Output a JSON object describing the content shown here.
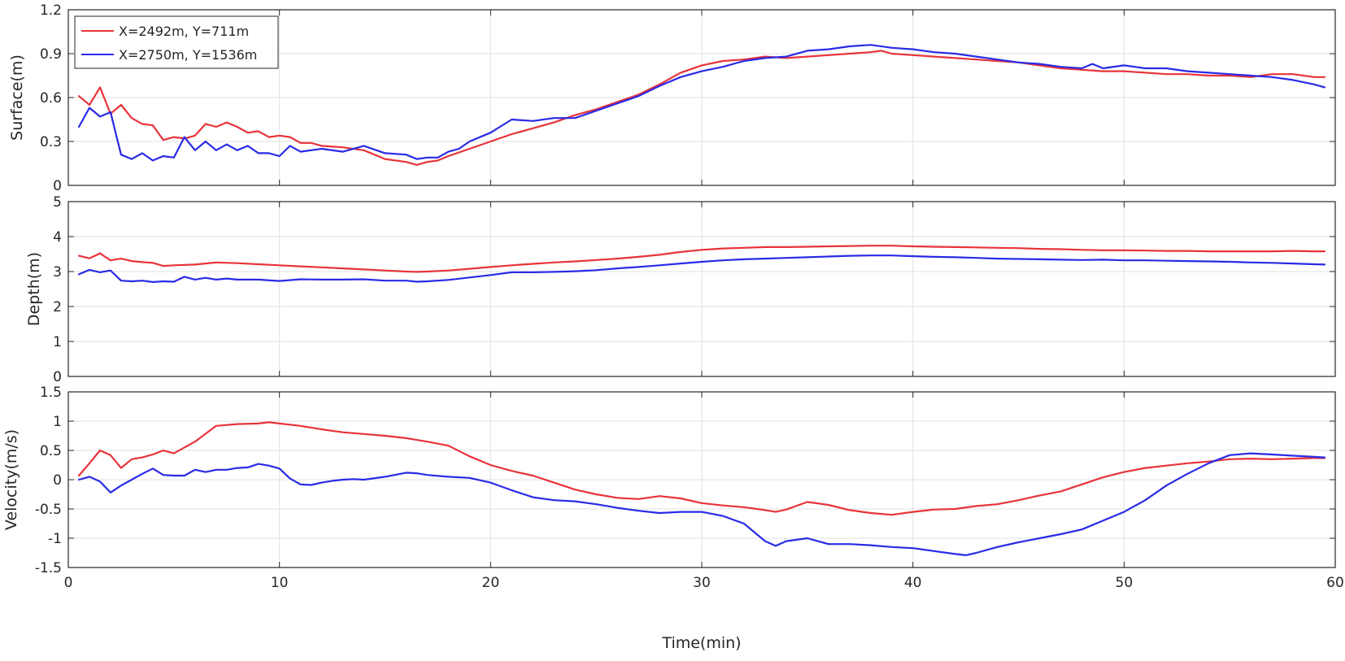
{
  "chart_data": {
    "type": "line",
    "xlabel": "Time(min)",
    "xlim": [
      0,
      60
    ],
    "xticks": [
      0,
      10,
      20,
      30,
      40,
      50,
      60
    ],
    "grid": true,
    "legend": {
      "placement": "top-left",
      "entries": [
        "X=2492m, Y=711m",
        "X=2750m, Y=1536m"
      ]
    },
    "colors": [
      "#e8333a",
      "#2a2ae6"
    ],
    "panels": [
      {
        "ylabel": "Surface(m)",
        "ylim": [
          0,
          1.2
        ],
        "yticks": [
          "0",
          "0.3",
          "0.6",
          "0.9",
          "1.2"
        ],
        "series": [
          {
            "name": "X=2492m, Y=711m",
            "x": [
              0.5,
              1,
              1.5,
              2,
              2.5,
              3,
              3.5,
              4,
              4.5,
              5,
              5.5,
              6,
              6.5,
              7,
              7.5,
              8,
              8.5,
              9,
              9.5,
              10,
              10.5,
              11,
              11.5,
              12,
              13,
              14,
              15,
              16,
              16.5,
              17,
              17.5,
              18,
              19,
              20,
              21,
              22,
              23,
              24,
              25,
              26,
              27,
              28,
              29,
              30,
              31,
              32,
              33,
              34,
              35,
              36,
              37,
              38,
              38.5,
              39,
              40,
              41,
              42,
              43,
              44,
              45,
              46,
              47,
              48,
              49,
              50,
              51,
              52,
              53,
              54,
              55,
              56,
              57,
              58,
              59,
              59.5
            ],
            "y": [
              0.61,
              0.55,
              0.67,
              0.49,
              0.55,
              0.46,
              0.42,
              0.41,
              0.31,
              0.33,
              0.32,
              0.34,
              0.42,
              0.4,
              0.43,
              0.4,
              0.36,
              0.37,
              0.33,
              0.34,
              0.33,
              0.29,
              0.29,
              0.27,
              0.26,
              0.24,
              0.18,
              0.16,
              0.14,
              0.16,
              0.17,
              0.2,
              0.25,
              0.3,
              0.35,
              0.39,
              0.43,
              0.48,
              0.52,
              0.57,
              0.62,
              0.69,
              0.77,
              0.82,
              0.85,
              0.86,
              0.88,
              0.87,
              0.88,
              0.89,
              0.9,
              0.91,
              0.92,
              0.9,
              0.89,
              0.88,
              0.87,
              0.86,
              0.85,
              0.84,
              0.82,
              0.8,
              0.79,
              0.78,
              0.78,
              0.77,
              0.76,
              0.76,
              0.75,
              0.75,
              0.74,
              0.76,
              0.76,
              0.74,
              0.74
            ]
          },
          {
            "name": "X=2750m, Y=1536m",
            "x": [
              0.5,
              1,
              1.5,
              2,
              2.5,
              3,
              3.5,
              4,
              4.5,
              5,
              5.5,
              6,
              6.5,
              7,
              7.5,
              8,
              8.5,
              9,
              9.5,
              10,
              10.5,
              11,
              11.5,
              12,
              13,
              14,
              15,
              16,
              16.5,
              17,
              17.5,
              18,
              18.5,
              19,
              20,
              21,
              22,
              23,
              24,
              25,
              26,
              27,
              28,
              29,
              30,
              31,
              32,
              33,
              34,
              35,
              36,
              37,
              38,
              39,
              40,
              41,
              42,
              43,
              44,
              45,
              46,
              47,
              48,
              48.5,
              49,
              50,
              51,
              52,
              53,
              54,
              55,
              56,
              57,
              58,
              59,
              59.5
            ],
            "y": [
              0.4,
              0.53,
              0.47,
              0.5,
              0.21,
              0.18,
              0.22,
              0.17,
              0.2,
              0.19,
              0.33,
              0.24,
              0.3,
              0.24,
              0.28,
              0.24,
              0.27,
              0.22,
              0.22,
              0.2,
              0.27,
              0.23,
              0.24,
              0.25,
              0.23,
              0.27,
              0.22,
              0.21,
              0.18,
              0.19,
              0.19,
              0.23,
              0.25,
              0.3,
              0.36,
              0.45,
              0.44,
              0.46,
              0.46,
              0.51,
              0.56,
              0.61,
              0.68,
              0.74,
              0.78,
              0.81,
              0.85,
              0.87,
              0.88,
              0.92,
              0.93,
              0.95,
              0.96,
              0.94,
              0.93,
              0.91,
              0.9,
              0.88,
              0.86,
              0.84,
              0.83,
              0.81,
              0.8,
              0.83,
              0.8,
              0.82,
              0.8,
              0.8,
              0.78,
              0.77,
              0.76,
              0.75,
              0.74,
              0.72,
              0.69,
              0.67
            ]
          }
        ]
      },
      {
        "ylabel": "Depth(m)",
        "ylim": [
          0,
          5
        ],
        "yticks": [
          "0",
          "1",
          "2",
          "3",
          "4",
          "5"
        ],
        "series": [
          {
            "name": "X=2492m, Y=711m",
            "x": [
              0.5,
              1,
              1.5,
              2,
              2.5,
              3,
              3.5,
              4,
              4.5,
              5,
              6,
              7,
              8,
              9,
              10,
              11,
              12,
              13,
              14,
              15,
              16,
              16.5,
              17,
              18,
              19,
              20,
              21,
              22,
              23,
              24,
              25,
              26,
              27,
              28,
              29,
              30,
              31,
              32,
              33,
              34,
              35,
              36,
              37,
              38,
              39,
              40,
              41,
              42,
              43,
              44,
              45,
              46,
              47,
              48,
              49,
              50,
              51,
              52,
              53,
              54,
              55,
              56,
              57,
              58,
              59,
              59.5
            ],
            "y": [
              3.45,
              3.38,
              3.52,
              3.32,
              3.37,
              3.3,
              3.27,
              3.25,
              3.16,
              3.18,
              3.2,
              3.26,
              3.24,
              3.21,
              3.18,
              3.15,
              3.12,
              3.09,
              3.06,
              3.03,
              3.0,
              2.99,
              3.0,
              3.03,
              3.08,
              3.13,
              3.18,
              3.22,
              3.26,
              3.29,
              3.33,
              3.37,
              3.42,
              3.48,
              3.56,
              3.62,
              3.66,
              3.68,
              3.7,
              3.7,
              3.71,
              3.72,
              3.73,
              3.74,
              3.74,
              3.72,
              3.71,
              3.7,
              3.69,
              3.68,
              3.67,
              3.65,
              3.64,
              3.62,
              3.61,
              3.61,
              3.6,
              3.59,
              3.59,
              3.58,
              3.58,
              3.58,
              3.58,
              3.59,
              3.58,
              3.58
            ]
          },
          {
            "name": "X=2750m, Y=1536m",
            "x": [
              0.5,
              1,
              1.5,
              2,
              2.5,
              3,
              3.5,
              4,
              4.5,
              5,
              5.5,
              6,
              6.5,
              7,
              7.5,
              8,
              9,
              10,
              11,
              12,
              13,
              14,
              15,
              16,
              16.5,
              17,
              18,
              19,
              20,
              21,
              22,
              23,
              24,
              25,
              26,
              27,
              28,
              29,
              30,
              31,
              32,
              33,
              34,
              35,
              36,
              37,
              38,
              39,
              40,
              41,
              42,
              43,
              44,
              45,
              46,
              47,
              48,
              49,
              50,
              51,
              52,
              53,
              54,
              55,
              56,
              57,
              58,
              59,
              59.5
            ],
            "y": [
              2.92,
              3.05,
              2.98,
              3.03,
              2.74,
              2.72,
              2.74,
              2.7,
              2.72,
              2.71,
              2.85,
              2.77,
              2.82,
              2.77,
              2.8,
              2.77,
              2.77,
              2.73,
              2.78,
              2.77,
              2.77,
              2.78,
              2.74,
              2.74,
              2.71,
              2.72,
              2.76,
              2.83,
              2.9,
              2.98,
              2.98,
              2.99,
              3.01,
              3.04,
              3.09,
              3.13,
              3.18,
              3.23,
              3.28,
              3.32,
              3.35,
              3.37,
              3.39,
              3.41,
              3.43,
              3.45,
              3.46,
              3.46,
              3.44,
              3.42,
              3.41,
              3.39,
              3.37,
              3.36,
              3.35,
              3.34,
              3.33,
              3.34,
              3.32,
              3.32,
              3.31,
              3.3,
              3.29,
              3.28,
              3.26,
              3.25,
              3.23,
              3.21,
              3.2
            ]
          }
        ]
      },
      {
        "ylabel": "Velocity(m/s)",
        "ylim": [
          -1.5,
          1.5
        ],
        "yticks": [
          "-1.5",
          "-1",
          "-0.5",
          "0",
          "0.5",
          "1",
          "1.5"
        ],
        "series": [
          {
            "name": "X=2492m, Y=711m",
            "x": [
              0.5,
              1,
              1.5,
              2,
              2.5,
              3,
              3.5,
              4,
              4.5,
              5,
              6,
              7,
              8,
              9,
              9.5,
              10,
              11,
              12,
              13,
              14,
              15,
              16,
              17,
              18,
              19,
              20,
              21,
              22,
              23,
              24,
              25,
              26,
              27,
              28,
              29,
              30,
              31,
              32,
              33,
              33.5,
              34,
              35,
              36,
              37,
              38,
              39,
              40,
              41,
              42,
              43,
              44,
              45,
              46,
              47,
              48,
              49,
              50,
              51,
              52,
              53,
              54,
              55,
              56,
              57,
              58,
              59,
              59.5
            ],
            "y": [
              0.07,
              0.28,
              0.5,
              0.42,
              0.2,
              0.35,
              0.38,
              0.43,
              0.5,
              0.45,
              0.65,
              0.92,
              0.95,
              0.96,
              0.98,
              0.96,
              0.92,
              0.86,
              0.81,
              0.78,
              0.75,
              0.71,
              0.65,
              0.58,
              0.4,
              0.25,
              0.15,
              0.07,
              -0.05,
              -0.17,
              -0.25,
              -0.31,
              -0.33,
              -0.28,
              -0.32,
              -0.4,
              -0.44,
              -0.47,
              -0.52,
              -0.55,
              -0.51,
              -0.38,
              -0.43,
              -0.52,
              -0.57,
              -0.6,
              -0.55,
              -0.51,
              -0.5,
              -0.45,
              -0.42,
              -0.35,
              -0.27,
              -0.2,
              -0.08,
              0.04,
              0.13,
              0.2,
              0.24,
              0.28,
              0.31,
              0.35,
              0.36,
              0.35,
              0.36,
              0.37,
              0.37
            ]
          },
          {
            "name": "X=2750m, Y=1536m",
            "x": [
              0.5,
              1,
              1.5,
              2,
              2.5,
              3,
              3.5,
              4,
              4.5,
              5,
              5.5,
              6,
              6.5,
              7,
              7.5,
              8,
              8.5,
              9,
              9.5,
              10,
              10.5,
              11,
              11.5,
              12,
              12.5,
              13,
              13.5,
              14,
              15,
              16,
              16.5,
              17,
              18,
              19,
              20,
              21,
              22,
              23,
              24,
              25,
              26,
              27,
              28,
              29,
              30,
              31,
              32,
              33,
              33.5,
              34,
              35,
              36,
              37,
              38,
              39,
              40,
              41,
              42,
              42.5,
              43,
              44,
              45,
              46,
              47,
              48,
              49,
              50,
              51,
              52,
              53,
              54,
              55,
              56,
              57,
              58,
              59,
              59.5
            ],
            "y": [
              0.0,
              0.05,
              -0.03,
              -0.22,
              -0.1,
              0.0,
              0.1,
              0.19,
              0.08,
              0.07,
              0.07,
              0.17,
              0.13,
              0.17,
              0.17,
              0.2,
              0.21,
              0.27,
              0.24,
              0.19,
              0.02,
              -0.08,
              -0.09,
              -0.05,
              -0.02,
              0.0,
              0.01,
              0.0,
              0.05,
              0.12,
              0.11,
              0.08,
              0.05,
              0.03,
              -0.05,
              -0.18,
              -0.3,
              -0.35,
              -0.37,
              -0.42,
              -0.48,
              -0.53,
              -0.57,
              -0.55,
              -0.55,
              -0.62,
              -0.75,
              -1.05,
              -1.13,
              -1.05,
              -1.0,
              -1.1,
              -1.1,
              -1.12,
              -1.15,
              -1.17,
              -1.22,
              -1.27,
              -1.29,
              -1.25,
              -1.15,
              -1.07,
              -1.0,
              -0.93,
              -0.85,
              -0.7,
              -0.55,
              -0.35,
              -0.1,
              0.1,
              0.28,
              0.42,
              0.45,
              0.43,
              0.41,
              0.39,
              0.38
            ]
          }
        ]
      }
    ]
  }
}
